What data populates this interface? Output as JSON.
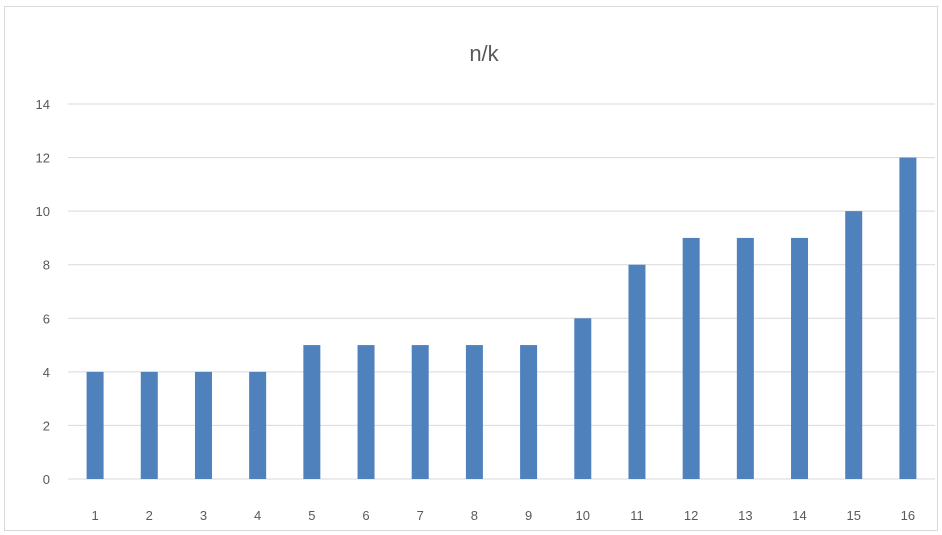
{
  "chart_data": {
    "type": "bar",
    "title": "n/k",
    "xlabel": "",
    "ylabel": "",
    "categories": [
      "1",
      "2",
      "3",
      "4",
      "5",
      "6",
      "7",
      "8",
      "9",
      "10",
      "11",
      "12",
      "13",
      "14",
      "15",
      "16"
    ],
    "values": [
      4,
      4,
      4,
      4,
      5,
      5,
      5,
      5,
      5,
      6,
      8,
      9,
      9,
      9,
      10,
      12
    ],
    "ylim": [
      0,
      14
    ],
    "yticks": [
      0,
      2,
      4,
      6,
      8,
      10,
      12,
      14
    ],
    "grid": true,
    "legend": "none",
    "bar_color": "#4f81bd",
    "grid_color": "#d9d9d9"
  }
}
